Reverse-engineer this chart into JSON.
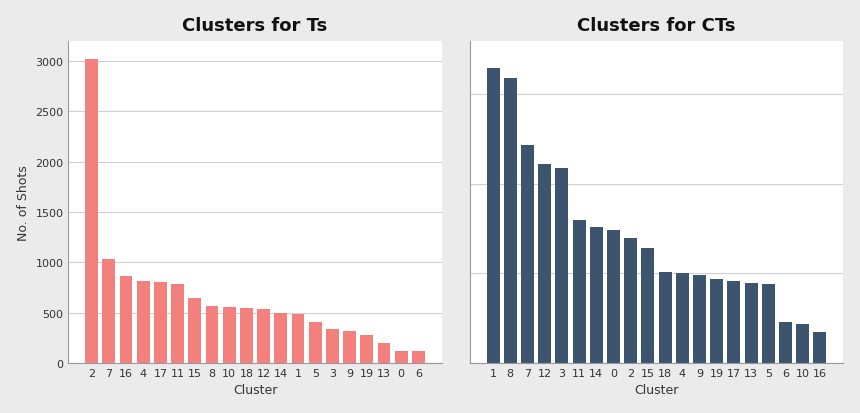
{
  "ts_categories": [
    "2",
    "7",
    "16",
    "4",
    "17",
    "11",
    "15",
    "8",
    "10",
    "18",
    "12",
    "14",
    "1",
    "5",
    "3",
    "9",
    "19",
    "13",
    "0",
    "6"
  ],
  "ts_values": [
    3020,
    1030,
    860,
    810,
    800,
    780,
    640,
    570,
    555,
    545,
    535,
    500,
    490,
    410,
    335,
    315,
    280,
    200,
    120,
    115
  ],
  "ts_color": "#f4807e",
  "ts_title": "Clusters for Ts",
  "cts_categories": [
    "1",
    "8",
    "7",
    "12",
    "3",
    "11",
    "14",
    "0",
    "2",
    "15",
    "18",
    "4",
    "9",
    "19",
    "17",
    "13",
    "5",
    "6",
    "10",
    "16"
  ],
  "cts_values": [
    1650,
    1590,
    1220,
    1110,
    1090,
    800,
    760,
    740,
    700,
    640,
    510,
    505,
    490,
    470,
    455,
    445,
    440,
    230,
    220,
    170
  ],
  "cts_color": "#3d546e",
  "cts_title": "Clusters for CTs",
  "ylabel": "No. of Shots",
  "xlabel": "Cluster",
  "bg_color": "#ebebeb",
  "plot_bg_color": "#ffffff",
  "ts_ylim": [
    0,
    3200
  ],
  "cts_ylim": [
    0,
    3200
  ],
  "title_fontsize": 13,
  "label_fontsize": 9,
  "tick_fontsize": 8,
  "grid_color": "#d0d0d0"
}
